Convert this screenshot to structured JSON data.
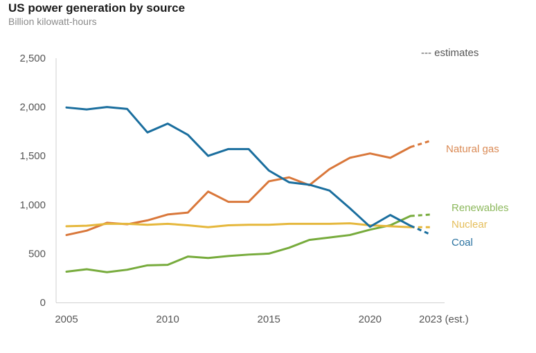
{
  "chart_data": {
    "type": "line",
    "title": "US power generation by source",
    "subtitle": "Billion kilowatt-hours",
    "xlabel": "",
    "ylabel": "Billion kilowatt-hours",
    "x": [
      2005,
      2006,
      2007,
      2008,
      2009,
      2010,
      2011,
      2012,
      2013,
      2014,
      2015,
      2016,
      2017,
      2018,
      2019,
      2020,
      2021,
      2022,
      2023
    ],
    "x_tick_labels": [
      {
        "x": 2005,
        "label": "2005"
      },
      {
        "x": 2010,
        "label": "2010"
      },
      {
        "x": 2015,
        "label": "2015"
      },
      {
        "x": 2020,
        "label": "2020"
      },
      {
        "x": 2023,
        "label": "2023 (est.)"
      }
    ],
    "xlim": [
      2005,
      2023
    ],
    "ylim": [
      0,
      2500
    ],
    "y_ticks": [
      0,
      500,
      1000,
      1500,
      2000,
      2500
    ],
    "y_tick_labels": [
      "0",
      "500",
      "1,000",
      "1,500",
      "2,000",
      "2,500"
    ],
    "grid": false,
    "estimate_start": 2022,
    "legend": {
      "label": "--- estimates",
      "placement": "top-right"
    },
    "series": [
      {
        "name": "Natural gas",
        "color": "#D9773A",
        "label_color": "#DA8A55",
        "values": [
          690,
          735,
          815,
          800,
          840,
          900,
          920,
          1135,
          1030,
          1030,
          1240,
          1280,
          1200,
          1365,
          1480,
          1525,
          1480,
          1590,
          1655
        ]
      },
      {
        "name": "Renewables",
        "color": "#77AB3C",
        "label_color": "#8CB85C",
        "values": [
          315,
          340,
          310,
          335,
          380,
          385,
          470,
          455,
          475,
          490,
          500,
          560,
          640,
          665,
          690,
          745,
          790,
          885,
          900
        ]
      },
      {
        "name": "Nuclear",
        "color": "#E5B73B",
        "label_color": "#E5BE5A",
        "values": [
          780,
          785,
          805,
          805,
          795,
          805,
          790,
          770,
          790,
          795,
          795,
          805,
          805,
          805,
          810,
          790,
          780,
          770,
          770
        ]
      },
      {
        "name": "Coal",
        "color": "#1A6E9E",
        "label_color": "#2A72A0",
        "values": [
          1995,
          1975,
          2000,
          1980,
          1740,
          1830,
          1715,
          1500,
          1570,
          1570,
          1350,
          1230,
          1205,
          1145,
          965,
          775,
          895,
          785,
          695
        ]
      }
    ]
  }
}
